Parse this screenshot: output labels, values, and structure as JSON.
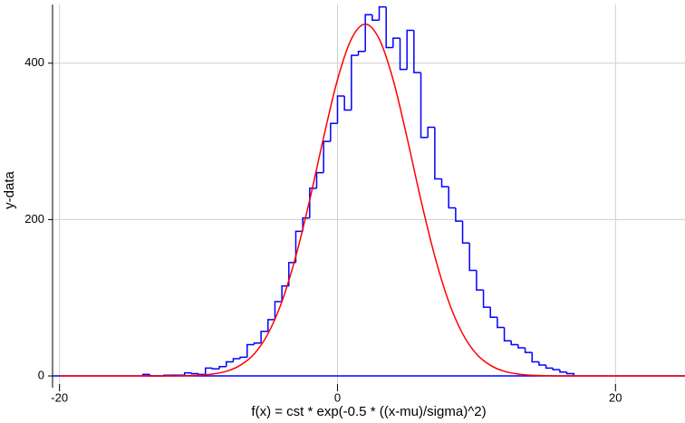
{
  "chart_data": {
    "type": "histogram",
    "xlabel": "f(x) = cst * exp(-0.5 * ((x-mu)/sigma)^2)",
    "ylabel": "y-data",
    "xlim": [
      -20.5,
      25
    ],
    "ylim": [
      -15,
      475
    ],
    "xticks": [
      -20,
      0,
      20
    ],
    "yticks": [
      0,
      200,
      400
    ],
    "grid": true,
    "color": "#0000ff",
    "bins": [
      -14,
      -13.5,
      -13,
      -12.5,
      -12,
      -11.5,
      -11,
      -10.5,
      -10,
      -9.5,
      -9,
      -8.5,
      -8,
      -7.5,
      -7,
      -6.5,
      -6,
      -5.5,
      -5,
      -4.5,
      -4,
      -3.5,
      -3,
      -2.5,
      -2,
      -1.5,
      -1,
      -0.5,
      0,
      0.5,
      1,
      1.5,
      2,
      2.5,
      3,
      3.5,
      4,
      4.5,
      5,
      5.5,
      6,
      6.5,
      7,
      7.5,
      8,
      8.5,
      9,
      9.5,
      10,
      10.5,
      11,
      11.5,
      12,
      12.5,
      13,
      13.5,
      14,
      14.5,
      15,
      15.5,
      16,
      16.5,
      17
    ],
    "values": [
      2,
      0,
      0,
      1,
      1,
      1,
      4,
      3,
      2,
      10,
      9,
      12,
      18,
      22,
      24,
      40,
      42,
      57,
      72,
      95,
      115,
      145,
      185,
      202,
      240,
      260,
      300,
      323,
      358,
      340,
      410,
      415,
      462,
      455,
      472,
      420,
      432,
      392,
      442,
      388,
      305,
      318,
      252,
      242,
      215,
      198,
      170,
      135,
      110,
      88,
      75,
      62,
      45,
      40,
      36,
      30,
      18,
      14,
      10,
      8,
      5,
      3
    ],
    "fit": {
      "type": "line",
      "color": "#ff0000",
      "x": [
        -20,
        -19,
        -18,
        -17,
        -16,
        -15,
        -14,
        -13,
        -12,
        -11,
        -10,
        -9,
        -8,
        -7,
        -6,
        -5,
        -4,
        -3,
        -2,
        -1,
        0,
        1,
        2,
        3,
        4,
        5,
        6,
        7,
        8,
        9,
        10,
        11,
        12,
        13,
        14,
        15,
        16,
        17,
        18,
        19,
        20,
        21,
        22,
        23,
        24,
        25
      ],
      "values": [
        0,
        0,
        0,
        0,
        0,
        0,
        0,
        0,
        0.1,
        0.3,
        0.9,
        2.4,
        5.9,
        13.6,
        28,
        54,
        95,
        153,
        225,
        305,
        379,
        431,
        450,
        431,
        379,
        305,
        225,
        153,
        95,
        54,
        28,
        13.6,
        5.9,
        2.4,
        0.9,
        0.3,
        0.1,
        0,
        0,
        0,
        0,
        0,
        0,
        0,
        0,
        0
      ]
    }
  }
}
